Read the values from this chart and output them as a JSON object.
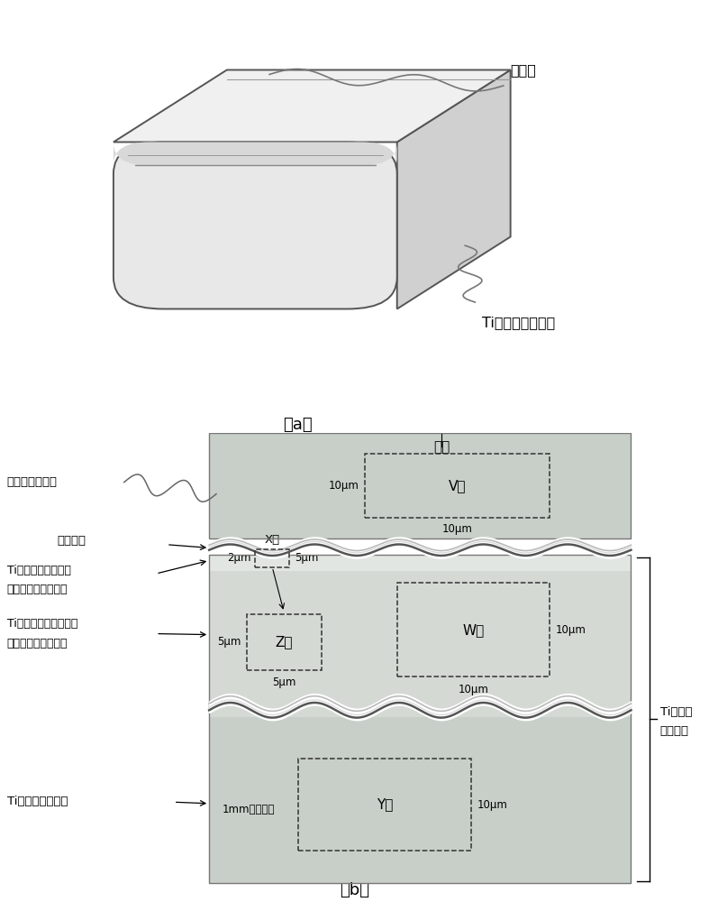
{
  "fig_width": 7.87,
  "fig_height": 10.0,
  "bg_color": "#ffffff",
  "label_a": "（a）",
  "label_b": "（b）",
  "top_label_coating": "熔射膜",
  "top_label_base": "Ti基金属陶瓷基体",
  "b_surface": "表面",
  "b_hard_alloy": "硬质合金熔射膜",
  "b_interface": "界面位置",
  "b_outermost_1": "Ti基金属陶瓷最外层",
  "b_outermost_2": "（结合相富集区域）",
  "b_near_1": "Ti基金属陶瓷表面附近",
  "b_near_2": "（结合相贫集区域）",
  "b_interior": "Ti基金属陶瓷内部",
  "b_base_1": "Ti基金属",
  "b_base_2": "陶瓷基体",
  "b_V": "V值",
  "b_W": "W值",
  "b_X": "X值",
  "b_Y": "Y值",
  "b_Z": "Z值",
  "b_10um_1": "10μm",
  "b_10um_2": "10μm",
  "b_10um_3": "10μm",
  "b_10um_4": "10μm",
  "b_10um_5": "10μm",
  "b_2um": "2μm",
  "b_5um_1": "5μm",
  "b_5um_2": "5μm",
  "b_5um_3": "5μm",
  "b_1mm": "1mm以上内部",
  "c_hard": "#c8cfc8",
  "c_outer_strip": "#e2e6e2",
  "c_near": "#d4d9d4",
  "c_interior": "#c8cfc8",
  "c_wave_dark": "#555555",
  "c_wave_light": "#aaaaaa",
  "c_box": "#333333",
  "c_body_front": "#e8e8e8",
  "c_body_top": "#f0f0f0",
  "c_body_side": "#d0d0d0",
  "c_coat_front": "#d8d8d8",
  "c_coat_top": "#e4e4e4",
  "c_edge": "#555555"
}
